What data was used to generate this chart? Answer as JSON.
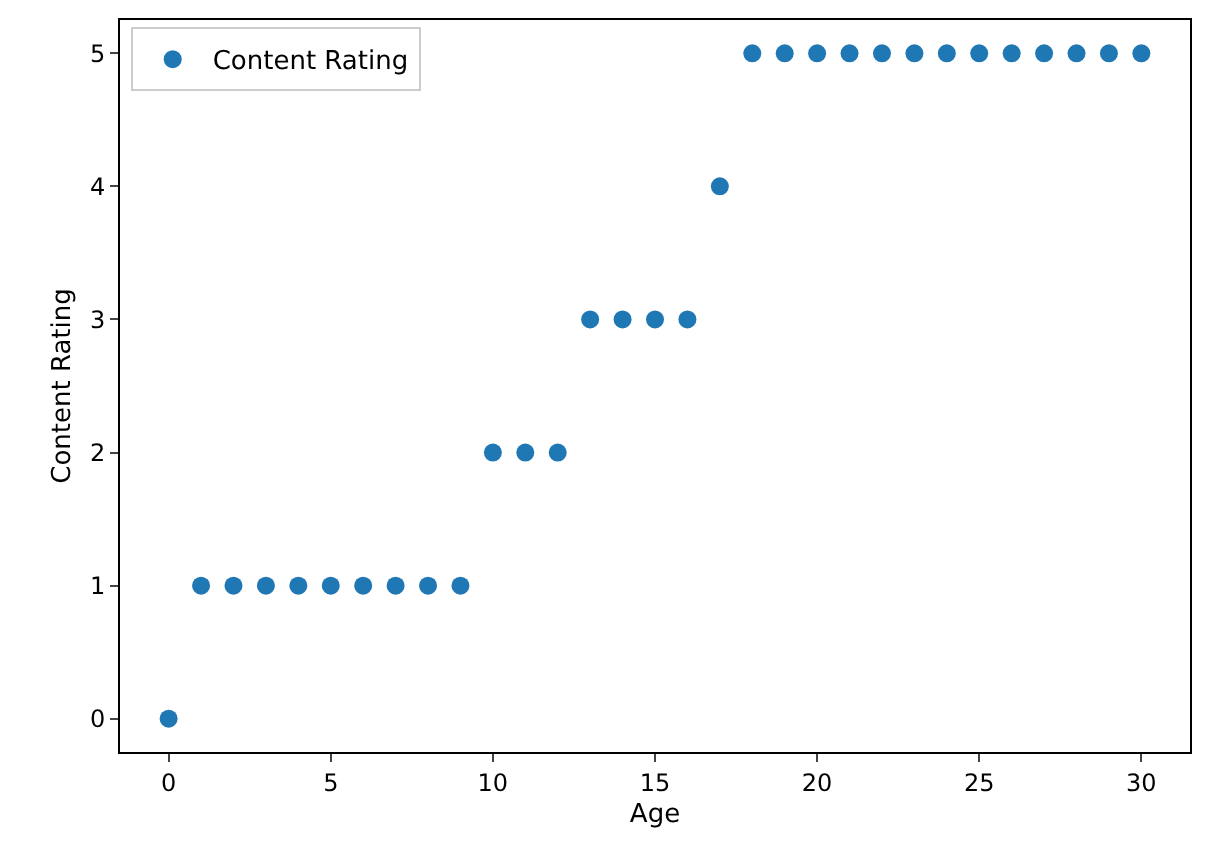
{
  "chart_data": {
    "type": "scatter",
    "xlabel": "Age",
    "ylabel": "Content Rating",
    "x": [
      0,
      1,
      2,
      3,
      4,
      5,
      6,
      7,
      8,
      9,
      10,
      11,
      12,
      13,
      14,
      15,
      16,
      17,
      18,
      19,
      20,
      21,
      22,
      23,
      24,
      25,
      26,
      27,
      28,
      29,
      30
    ],
    "series": [
      {
        "name": "Content Rating",
        "color": "#1f77b4",
        "values": [
          0,
          1,
          1,
          1,
          1,
          1,
          1,
          1,
          1,
          1,
          2,
          2,
          2,
          3,
          3,
          3,
          3,
          4,
          5,
          5,
          5,
          5,
          5,
          5,
          5,
          5,
          5,
          5,
          5,
          5,
          5
        ]
      }
    ],
    "xlim": [
      -1.5,
      31.5
    ],
    "xticks": [
      0,
      5,
      10,
      15,
      20,
      25,
      30
    ],
    "ylim": [
      -0.25,
      5.25
    ],
    "yticks": [
      0,
      1,
      2,
      3,
      4,
      5
    ],
    "legend": "top left",
    "marker": "circle"
  }
}
